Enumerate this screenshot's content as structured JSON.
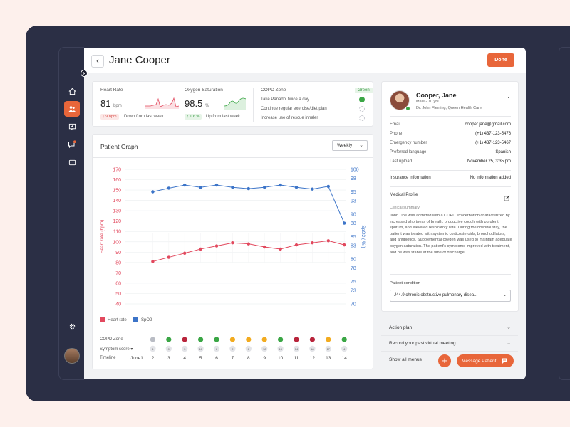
{
  "header": {
    "title": "Jane Cooper",
    "done_label": "Done"
  },
  "metrics": {
    "heart_rate": {
      "label": "Heart Rate",
      "value": "81",
      "unit": "bpm",
      "change": "↓ 9 bpm",
      "trend": "Down from last week"
    },
    "oxygen": {
      "label": "Oxygen Saturation",
      "value": "98.5",
      "unit": "%",
      "change": "↑ 1.6 %",
      "trend": "Up from last week"
    },
    "copd": {
      "label": "COPD Zone",
      "zone": "Green",
      "items": [
        {
          "text": "Take Panadol twice a day",
          "done": true
        },
        {
          "text": "Continue regular exercise/diet plan",
          "done": false
        },
        {
          "text": "Increase use of rescue inhaler",
          "done": false
        }
      ]
    }
  },
  "graph": {
    "title": "Patient Graph",
    "period": "Weekly",
    "legend": [
      "Heart rate",
      "SpO2"
    ],
    "timeline_labels": {
      "copd": "COPD Zone",
      "symptom": "Symptom score ▾",
      "timeline": "Timeline"
    }
  },
  "chart_data": {
    "type": "line",
    "x": [
      "June1",
      "2",
      "3",
      "4",
      "5",
      "6",
      "7",
      "8",
      "9",
      "10",
      "11",
      "12",
      "13",
      "14"
    ],
    "series": [
      {
        "name": "Heart rate",
        "axis": "left",
        "color": "#e2495e",
        "values": [
          null,
          81,
          85,
          89,
          93,
          96,
          99,
          98,
          95,
          93,
          97,
          99,
          101,
          97
        ]
      },
      {
        "name": "SpO2",
        "axis": "right",
        "color": "#3c74c8",
        "values": [
          null,
          95,
          95.8,
          96.5,
          96,
          96.5,
          96,
          95.7,
          96,
          96.5,
          96,
          95.6,
          96.2,
          88
        ]
      }
    ],
    "y_left": {
      "label": "Heart rate (bpm)",
      "ticks": [
        40,
        50,
        60,
        70,
        80,
        90,
        100,
        110,
        120,
        130,
        140,
        150,
        160,
        170
      ],
      "range": [
        40,
        170
      ]
    },
    "y_right": {
      "label": "SpO2 ( % )",
      "ticks": [
        70,
        73,
        75,
        78,
        80,
        83,
        85,
        88,
        90,
        93,
        95,
        98,
        100
      ],
      "range": [
        70,
        100
      ]
    },
    "copd_zone": [
      null,
      "grey",
      "green",
      "red",
      "green",
      "green",
      "yellow",
      "yellow",
      "yellow",
      "green",
      "red",
      "red",
      "yellow",
      "green"
    ],
    "symptom_score": [
      null,
      "4",
      "0",
      "3",
      "18",
      "6",
      "2",
      "6",
      "18",
      "13",
      "14",
      "18",
      "17",
      "4"
    ]
  },
  "profile": {
    "name": "Cooper, Jane",
    "details": "Male - 70 yrs",
    "doctor": "Dr. John Fleming, Queen Health Care",
    "fields": [
      {
        "label": "Email",
        "value": "cooper.jane@gmail.com"
      },
      {
        "label": "Phone",
        "value": "(+1) 437-123-5476"
      },
      {
        "label": "Emergency number",
        "value": "(+1) 437-123-5467"
      },
      {
        "label": "Preferred language",
        "value": "Spanish"
      },
      {
        "label": "Last upload",
        "value": "November 25, 3:35 pm"
      }
    ],
    "insurance_label": "Insurance information",
    "insurance_value": "No information added",
    "medical_profile_label": "Medical Profile",
    "clinical_label": "Clinical summary:",
    "clinical_text": "John Doe was admitted with a COPD exacerbation characterized by increased shortness of breath, productive cough with purulent sputum, and elevated respiratory rate. During the hospital stay, the patient was treated with systemic corticosteroids, bronchodilators, and antibiotics. Supplemental oxygen was used to maintain adequate oxygen saturation. The patient's symptoms improved with treatment, and he was stable at the time of discharge.",
    "condition_label": "Patient condition",
    "condition_value": "J44.9 chronic obstructive pulmonary disea..."
  },
  "accordion": {
    "action_plan": "Action plan",
    "virtual_meeting": "Record your past virtual meeting"
  },
  "footer": {
    "show_all": "Show all menus",
    "message_patient": "Message Patient"
  },
  "colors": {
    "accent": "#e8663a",
    "sidebar": "#2b2f45",
    "heart": "#e2495e",
    "spo2": "#3c74c8",
    "green": "#3aa645",
    "red": "#b8243b",
    "yellow": "#f2ab1f",
    "grey": "#b9bcc4"
  }
}
